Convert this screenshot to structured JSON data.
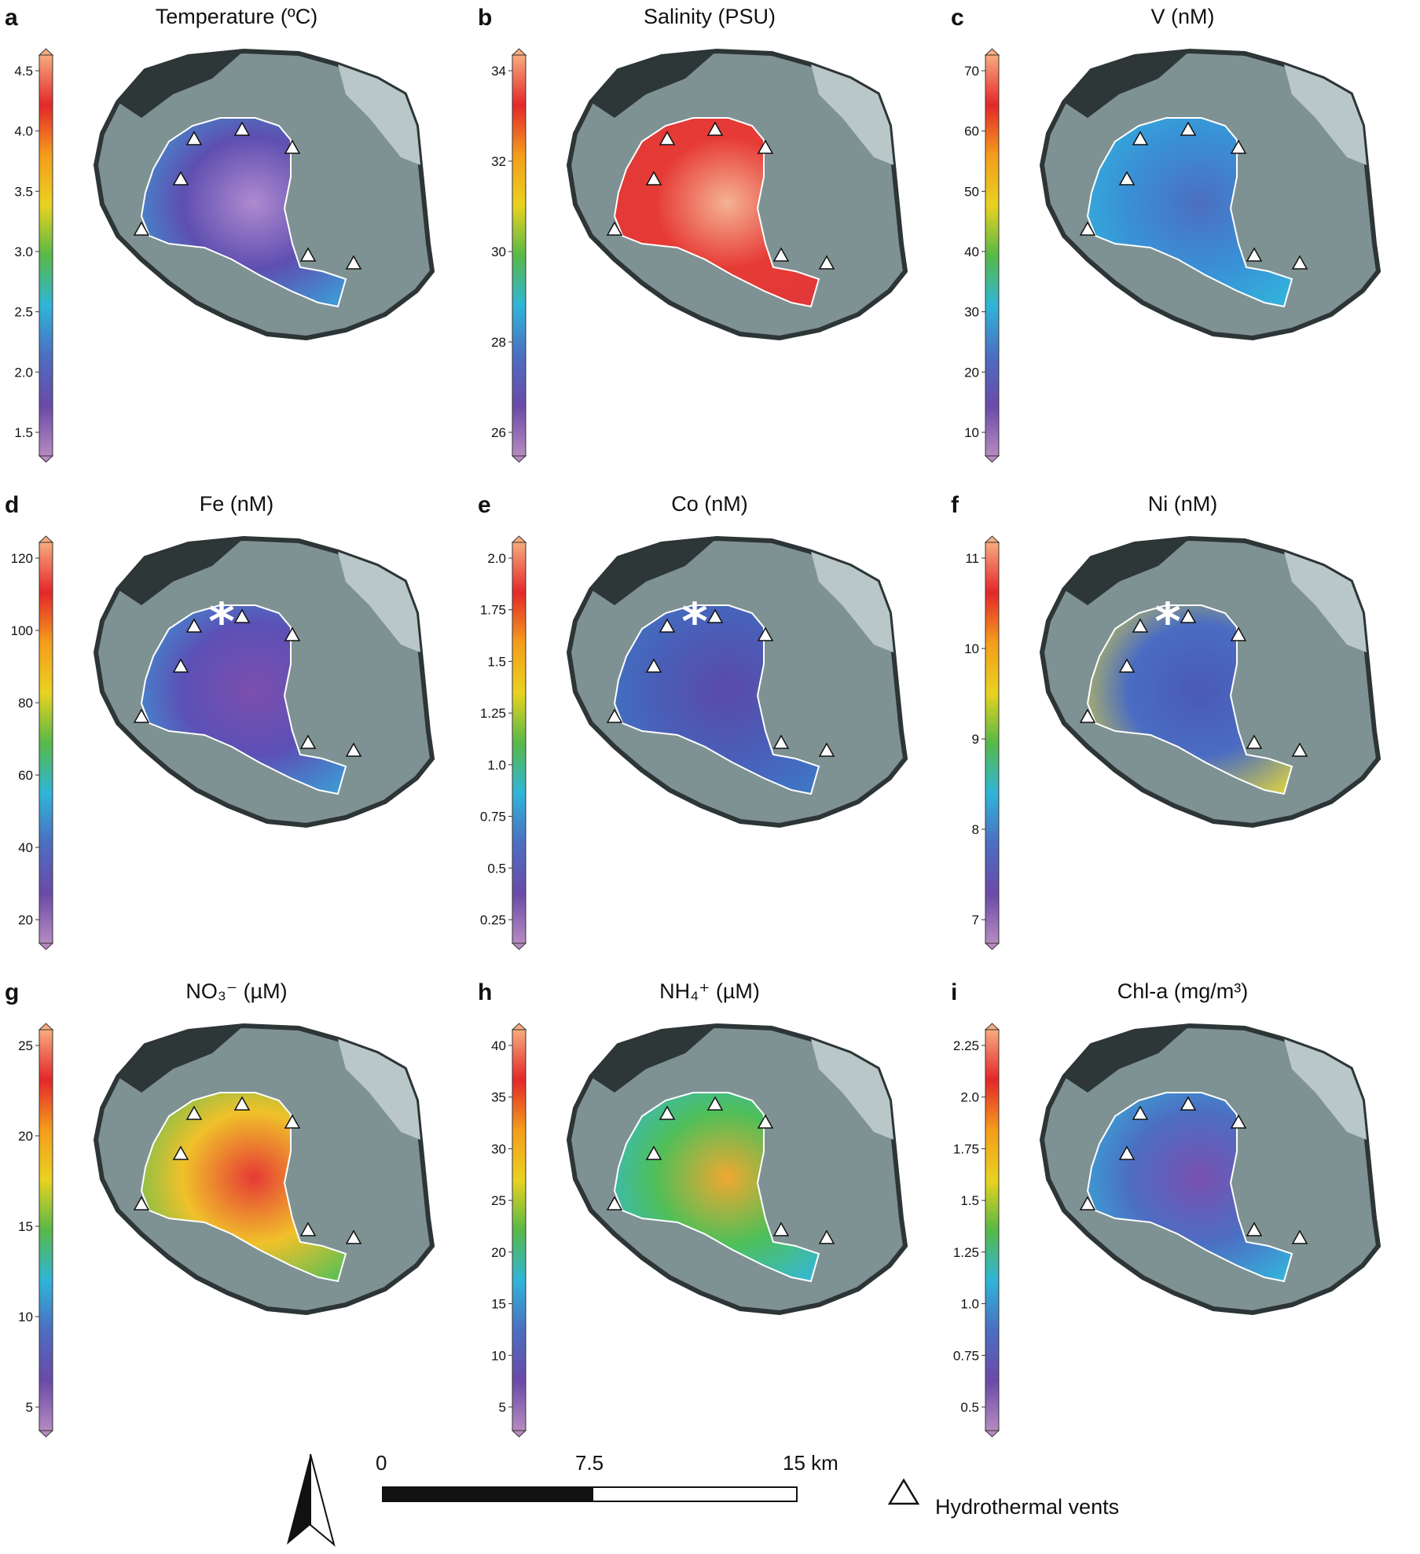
{
  "colorbar_colors": [
    "#b68ac0",
    "#6a4aa8",
    "#4c6ec2",
    "#2fb5d8",
    "#57b947",
    "#e9d21f",
    "#f49d1b",
    "#e4272a",
    "#f7ab7e"
  ],
  "panels": [
    {
      "letter": "a",
      "title": "Temperature (ºC)",
      "ticks": [
        "4.5",
        "4.0",
        "3.5",
        "3.0",
        "2.5",
        "2.0",
        "1.5"
      ]
    },
    {
      "letter": "b",
      "title": "Salinity (PSU)",
      "ticks": [
        "34",
        "32",
        "30",
        "28",
        "26"
      ]
    },
    {
      "letter": "c",
      "title": "V (nM)",
      "ticks": [
        "70",
        "60",
        "50",
        "40",
        "30",
        "20",
        "10"
      ]
    },
    {
      "letter": "d",
      "title": "Fe (nM)",
      "ticks": [
        "120",
        "100",
        "80",
        "60",
        "40",
        "20"
      ],
      "asterisk": true
    },
    {
      "letter": "e",
      "title": "Co (nM)",
      "ticks": [
        "2.0",
        "1.75",
        "1.5",
        "1.25",
        "1.0",
        "0.75",
        "0.5",
        "0.25"
      ],
      "asterisk": true
    },
    {
      "letter": "f",
      "title": "Ni (nM)",
      "ticks": [
        "11",
        "10",
        "9",
        "8",
        "7"
      ],
      "asterisk": true
    },
    {
      "letter": "g",
      "title": "NO₃⁻ (µM)",
      "ticks": [
        "25",
        "20",
        "15",
        "10",
        "5"
      ]
    },
    {
      "letter": "h",
      "title": "NH₄⁺ (µM)",
      "ticks": [
        "40",
        "35",
        "30",
        "25",
        "20",
        "15",
        "10",
        "5"
      ]
    },
    {
      "letter": "i",
      "title": "Chl-a (mg/m³)",
      "ticks": [
        "2.25",
        "2.0",
        "1.75",
        "1.5",
        "1.25",
        "1.0",
        "0.75",
        "0.5"
      ]
    }
  ],
  "scale_bar": {
    "labels": [
      "0",
      "7.5",
      "15 km"
    ]
  },
  "legend": {
    "label": "Hydrothermal vents",
    "icon": "triangle-icon"
  },
  "north_arrow": {
    "icon": "north-arrow-icon"
  }
}
